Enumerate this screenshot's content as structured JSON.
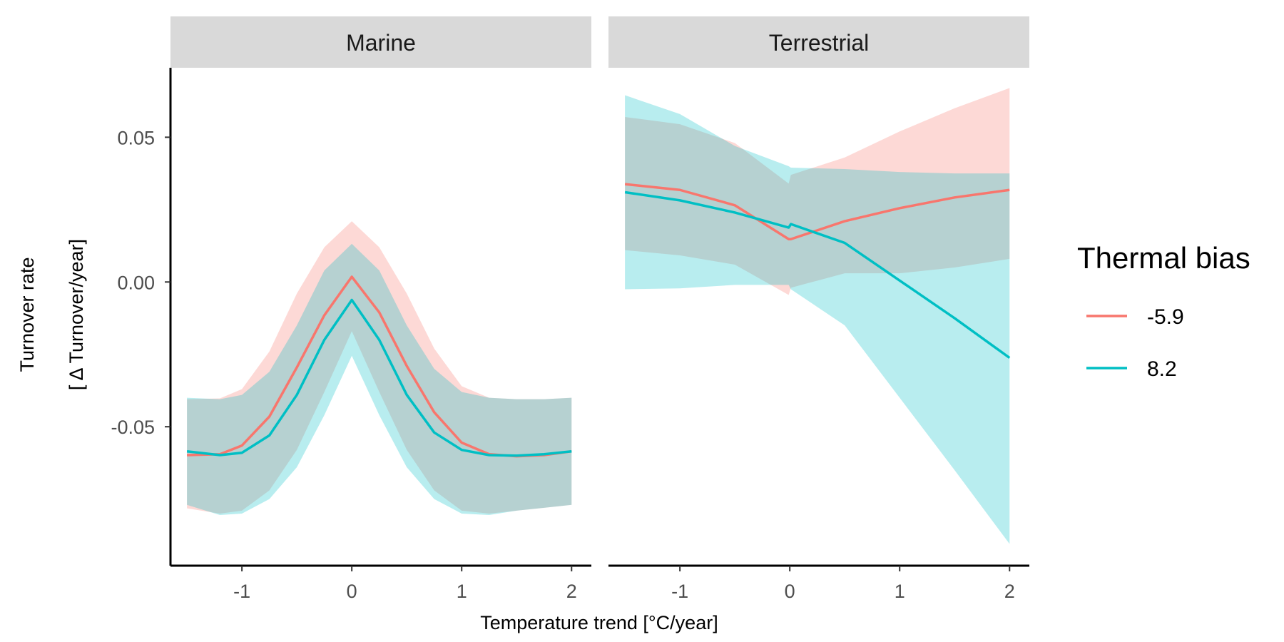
{
  "chart_data": {
    "type": "line",
    "xlabel": "Temperature trend [°C/year]",
    "ylabel_lines": [
      "Turnover rate",
      "[ Δ Turnover/year]"
    ],
    "xlim": [
      -1.65,
      2.18
    ],
    "ylim": [
      -0.098,
      0.074
    ],
    "x_ticks": [
      -1,
      0,
      1,
      2
    ],
    "x_tick_labels": [
      "-1",
      "0",
      "1",
      "2"
    ],
    "y_ticks": [
      0.05,
      0.0,
      -0.05
    ],
    "y_tick_labels": [
      "0.05",
      "0.00",
      "-0.05"
    ],
    "grid": false,
    "legend": {
      "title": "Thermal bias",
      "position": "right",
      "items": [
        {
          "label": "-5.9",
          "color": "#F8766D"
        },
        {
          "label": "8.2",
          "color": "#00BFC4"
        }
      ]
    },
    "panels": [
      {
        "title": "Marine",
        "x": [
          -1.5,
          -1.2,
          -1.0,
          -0.75,
          -0.5,
          -0.25,
          0.0,
          0.25,
          0.5,
          0.75,
          1.0,
          1.25,
          1.5,
          1.75,
          2.0
        ],
        "series": [
          {
            "name": "-5.9",
            "color": "#F8766D",
            "values": [
              -0.0598,
              -0.0595,
              -0.0565,
              -0.0465,
              -0.0295,
              -0.0115,
              0.0018,
              -0.0105,
              -0.029,
              -0.045,
              -0.0555,
              -0.0595,
              -0.0602,
              -0.0598,
              -0.0585
            ],
            "lower": [
              -0.0782,
              -0.08,
              -0.079,
              -0.072,
              -0.058,
              -0.038,
              -0.017,
              -0.038,
              -0.058,
              -0.072,
              -0.079,
              -0.08,
              -0.079,
              -0.078,
              -0.077
            ],
            "upper": [
              -0.0405,
              -0.0402,
              -0.037,
              -0.024,
              -0.004,
              0.012,
              0.021,
              0.012,
              -0.004,
              -0.023,
              -0.036,
              -0.04,
              -0.0405,
              -0.0405,
              -0.04
            ]
          },
          {
            "name": "8.2",
            "color": "#00BFC4",
            "values": [
              -0.0585,
              -0.0598,
              -0.059,
              -0.053,
              -0.039,
              -0.02,
              -0.0062,
              -0.02,
              -0.039,
              -0.052,
              -0.058,
              -0.0598,
              -0.06,
              -0.0595,
              -0.0585
            ],
            "lower": [
              -0.077,
              -0.0805,
              -0.08,
              -0.075,
              -0.064,
              -0.046,
              -0.0255,
              -0.046,
              -0.064,
              -0.075,
              -0.08,
              -0.0805,
              -0.079,
              -0.078,
              -0.077
            ],
            "upper": [
              -0.04,
              -0.0405,
              -0.039,
              -0.031,
              -0.015,
              0.004,
              0.0132,
              0.004,
              -0.015,
              -0.03,
              -0.038,
              -0.04,
              -0.0405,
              -0.0405,
              -0.04
            ]
          }
        ]
      },
      {
        "title": "Terrestrial",
        "x": [
          -1.5,
          -1.0,
          -0.5,
          -0.01,
          0.01,
          0.5,
          1.0,
          1.5,
          2.0
        ],
        "series": [
          {
            "name": "-5.9",
            "color": "#F8766D",
            "values": [
              0.0338,
              0.0318,
              0.0265,
              0.0148,
              0.0148,
              0.021,
              0.0255,
              0.0292,
              0.0318
            ],
            "lower": [
              0.011,
              0.0092,
              0.006,
              -0.0045,
              -0.002,
              0.003,
              0.003,
              0.005,
              0.008
            ],
            "upper": [
              0.057,
              0.0545,
              0.048,
              0.034,
              0.037,
              0.043,
              0.052,
              0.06,
              0.067
            ]
          },
          {
            "name": "8.2",
            "color": "#00BFC4",
            "values": [
              0.031,
              0.0282,
              0.024,
              0.0188,
              0.02,
              0.0135,
              0.0005,
              -0.0125,
              -0.0262
            ],
            "lower": [
              -0.0025,
              -0.0022,
              -0.001,
              -0.001,
              -0.0025,
              -0.015,
              -0.04,
              -0.065,
              -0.0905
            ],
            "upper": [
              0.0645,
              0.058,
              0.047,
              0.04,
              0.0395,
              0.039,
              0.038,
              0.0375,
              0.0375
            ]
          }
        ]
      }
    ]
  }
}
